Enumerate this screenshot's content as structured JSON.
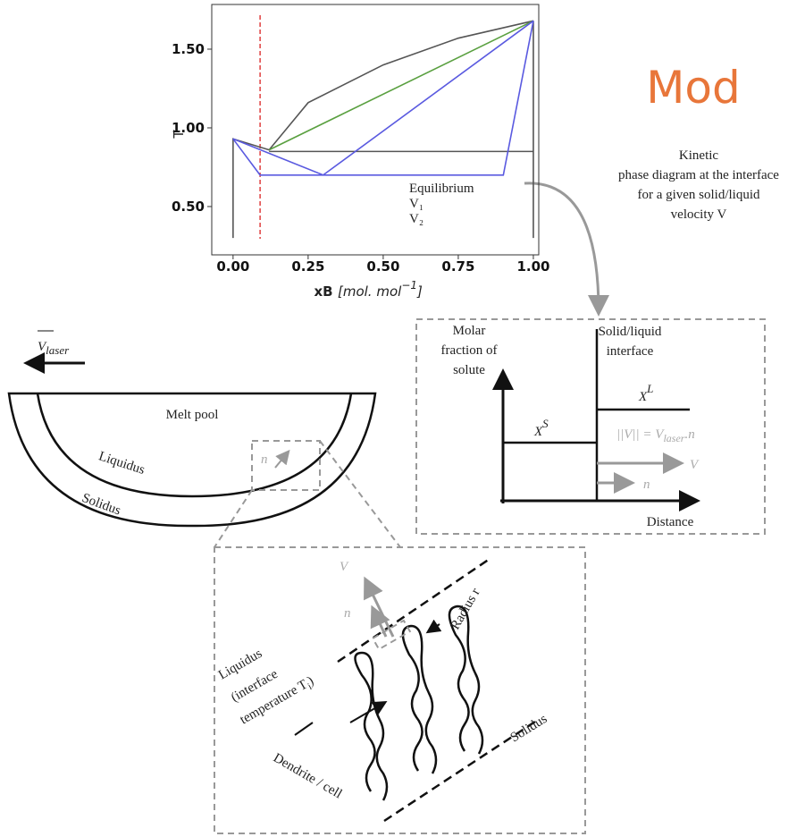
{
  "title": "Mod",
  "caption": [
    "Kinetic",
    "phase diagram at the interface",
    "for a given solid/liquid",
    "velocity V"
  ],
  "melt_pool": {
    "laser_symbol": "V",
    "laser_subscript": "laser",
    "pool": "Melt pool",
    "liquidus": "Liquidus",
    "solidus": "Solidus",
    "normal": "n"
  },
  "profile": {
    "y_axis": [
      "Molar",
      "fraction of",
      "solute"
    ],
    "interface": [
      "Solid/liquid",
      "interface"
    ],
    "solid": {
      "base": "X",
      "sup": "S"
    },
    "liquid": {
      "base": "X",
      "sup": "L"
    },
    "relation": {
      "lhs": "||V|| = V",
      "sub": "laser",
      "rhs": ".n"
    },
    "velocity": "V",
    "normal": "n",
    "x_axis": "Distance"
  },
  "dendrites": {
    "velocity": "V",
    "normal": "n",
    "radius": "Radius r",
    "liquidus": [
      "Liquidus",
      "(interface",
      "temperature T"
    ],
    "liquidus_sub": "i",
    "liquidus_end": ")",
    "solidus": "Solidus",
    "dendrite": "Dendrite / cell"
  },
  "chart_data": {
    "type": "line",
    "y_label": "T",
    "x_label": "xB",
    "x_unit": "[mol. mol",
    "x_unit_sup": "−1",
    "x_unit_end": "]",
    "xlim": [
      -0.071,
      1.018
    ],
    "ylim": [
      0.193,
      1.784
    ],
    "xticks": [
      {
        "value": 0,
        "label": "0.00"
      },
      0.25,
      {
        "value": 0.5,
        "label": "0.50"
      },
      0.75,
      {
        "value": 1,
        "label": "1.00"
      }
    ],
    "yticks": [
      {
        "value": 0.5,
        "label": "0.50"
      },
      {
        "value": 1,
        "label": "1.00"
      },
      {
        "value": 1.5,
        "label": "1.50"
      }
    ],
    "legend": "lower right",
    "marker_x": 0.09,
    "marker_color": "#e04040",
    "series": [
      {
        "name": "Equilibrium",
        "color": "#555555",
        "x": [
          0,
          0,
          0.12,
          0.25,
          0.5,
          0.75,
          1,
          null,
          0.12,
          1,
          null,
          1,
          1
        ],
        "values": [
          0.3,
          0.93,
          0.86,
          1.16,
          1.4,
          1.57,
          1.68,
          null,
          0.85,
          0.85,
          null,
          0.3,
          1.68
        ]
      },
      {
        "name": "V₁",
        "color": "#5aa040",
        "x": [
          0.12,
          1
        ],
        "values": [
          0.86,
          1.68
        ]
      },
      {
        "name": "V₂",
        "color": "#5a5ae0",
        "x": [
          0,
          0.3,
          1,
          null,
          0,
          0.09,
          0.9,
          1
        ],
        "values": [
          0.93,
          0.7,
          1.68,
          null,
          0.93,
          0.7,
          0.7,
          1.68
        ]
      }
    ]
  }
}
